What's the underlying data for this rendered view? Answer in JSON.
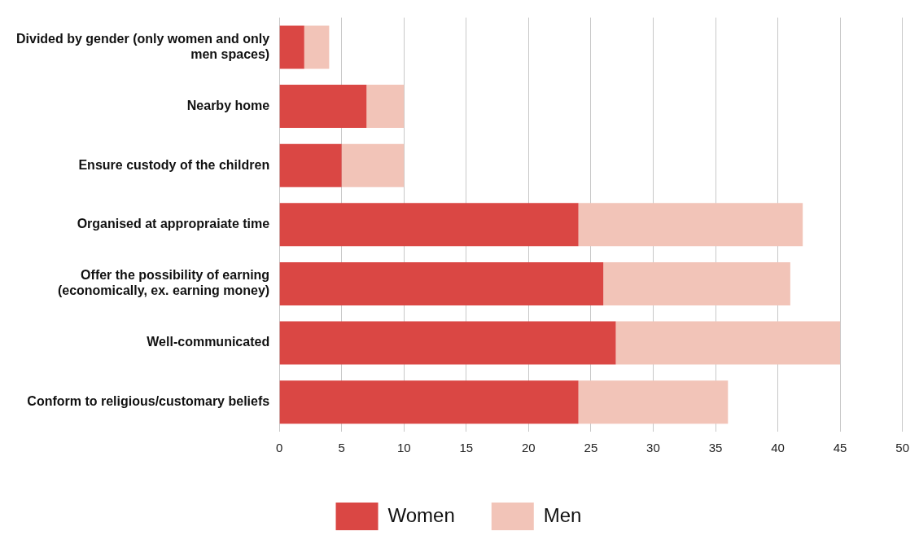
{
  "chart_data": {
    "type": "bar",
    "orientation": "horizontal",
    "stacked": true,
    "categories": [
      "Divided by gender (only women and only men spaces)",
      "Nearby home",
      "Ensure custody of the children",
      "Organised at appropraiate time",
      "Offer the possibility of earning (economically, ex. earning money)",
      "Well-communicated",
      "Conform to religious/customary beliefs"
    ],
    "series": [
      {
        "name": "Women",
        "color": "#da4744",
        "values": [
          2,
          7,
          5,
          24,
          26,
          27,
          24
        ]
      },
      {
        "name": "Men",
        "color": "#f2c4b8",
        "values": [
          2,
          3,
          5,
          18,
          15,
          18,
          12
        ]
      }
    ],
    "xlim": [
      0,
      50
    ],
    "xticks": [
      0,
      5,
      10,
      15,
      20,
      25,
      30,
      35,
      40,
      45,
      50
    ],
    "grid": "x",
    "legend": "bottom"
  }
}
